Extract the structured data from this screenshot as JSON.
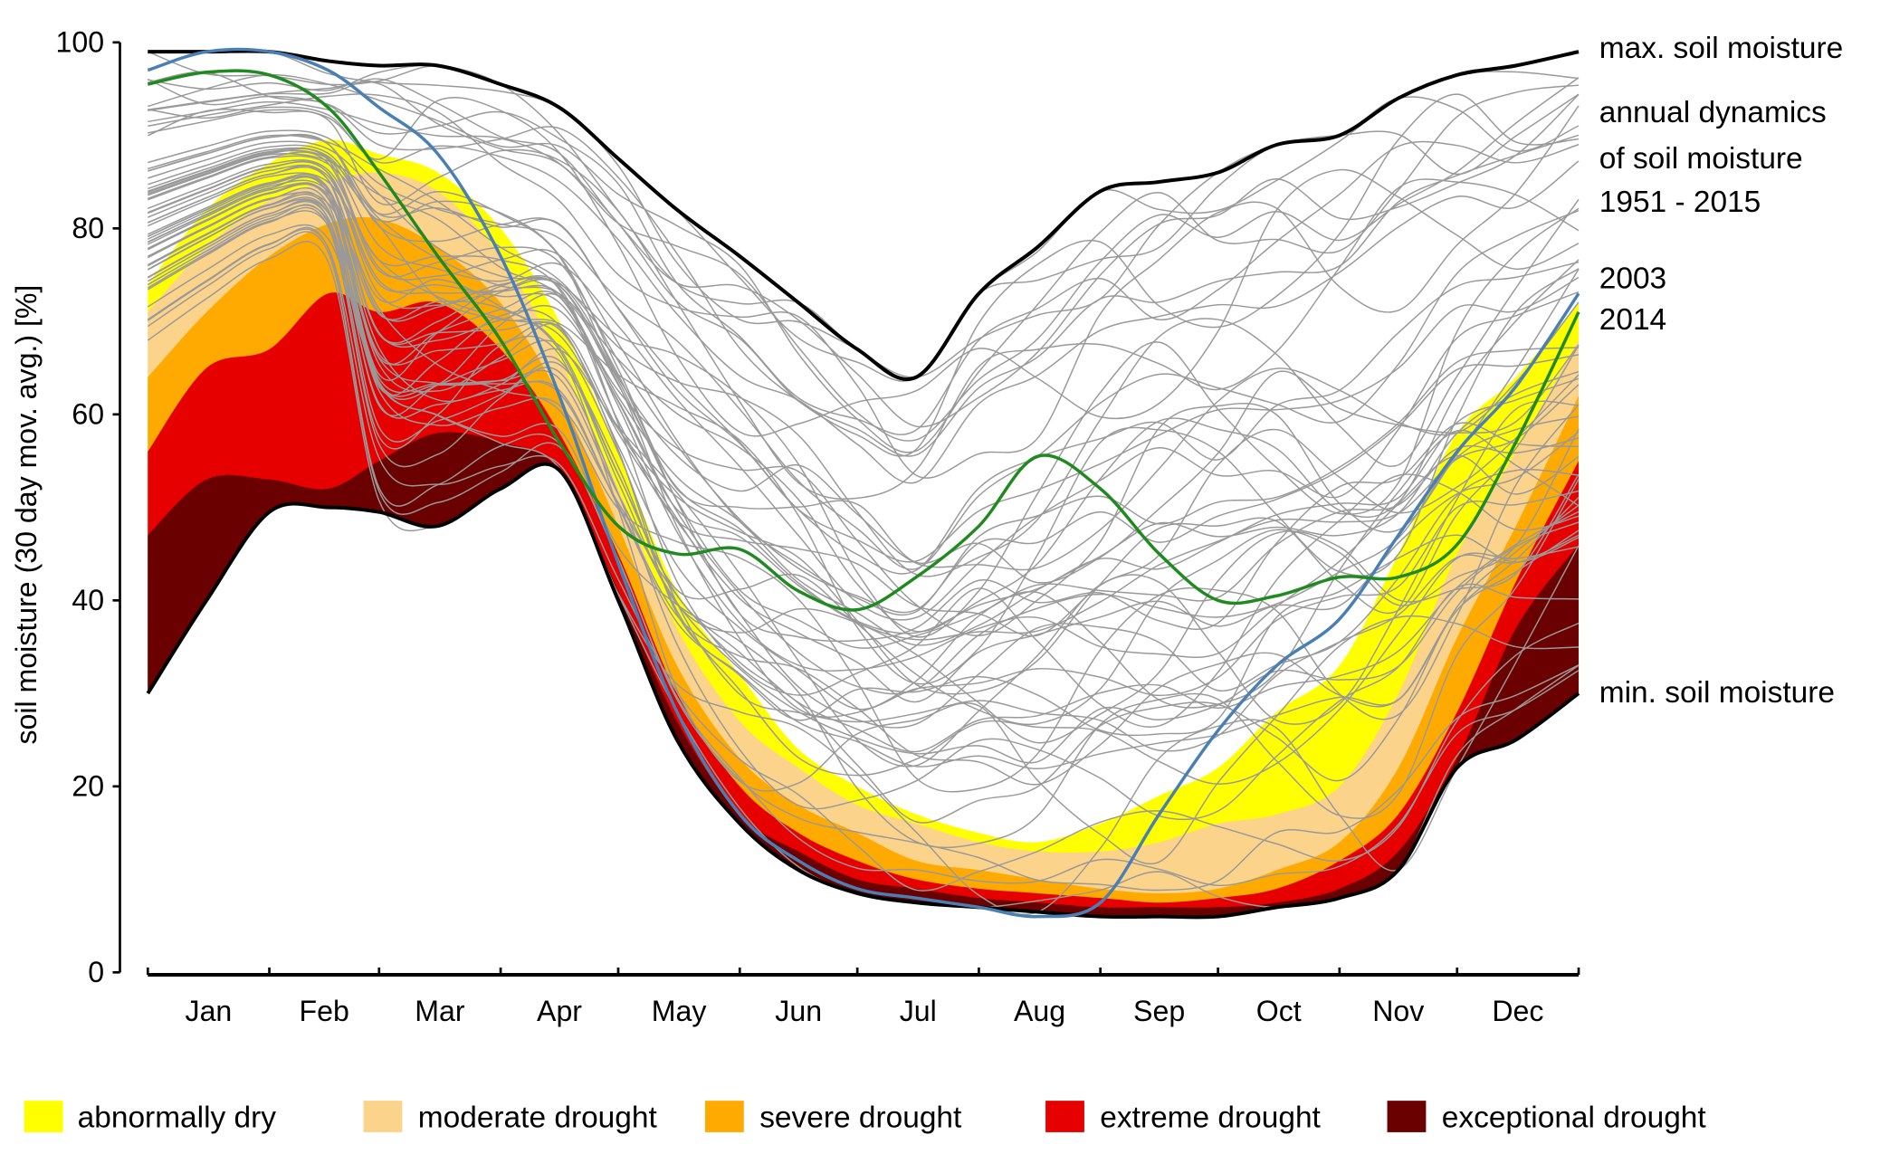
{
  "chart_data": {
    "type": "area",
    "title": "",
    "xlabel": "",
    "ylabel": "soil moisture (30 day mov. avg.) [%]",
    "ylim": [
      0,
      100
    ],
    "yticks": [
      0,
      20,
      40,
      60,
      80,
      100
    ],
    "xlim_day_of_year": [
      0,
      365
    ],
    "month_labels": [
      "Jan",
      "Feb",
      "Mar",
      "Apr",
      "May",
      "Jun",
      "Jul",
      "Aug",
      "Sep",
      "Oct",
      "Nov",
      "Dec"
    ],
    "grid": false,
    "legend_placement": "bottom",
    "x_day_of_year": [
      0,
      15,
      31,
      46,
      59,
      74,
      90,
      105,
      120,
      135,
      151,
      166,
      181,
      196,
      212,
      227,
      243,
      258,
      273,
      288,
      304,
      319,
      334,
      349,
      365
    ],
    "bands": [
      {
        "name": "exceptional drought",
        "color": "#6b0000",
        "top": [
          47,
          53,
          53,
          52,
          55,
          58,
          57,
          54,
          41,
          27,
          17,
          13,
          10,
          9,
          8,
          7.5,
          7,
          7,
          7,
          7.5,
          9,
          13,
          23,
          37,
          46
        ]
      },
      {
        "name": "extreme drought",
        "color": "#e60000",
        "top": [
          56,
          65,
          67,
          73,
          71,
          72,
          67,
          58,
          45,
          30,
          20,
          15,
          12,
          10,
          9,
          8.5,
          8,
          7.5,
          8,
          9,
          12,
          17,
          28,
          42,
          55
        ]
      },
      {
        "name": "severe drought",
        "color": "#ffaa00",
        "top": [
          64,
          71,
          77,
          80.5,
          81,
          78,
          72,
          62,
          48,
          33,
          23,
          18,
          15,
          12,
          11,
          10,
          9,
          8.5,
          9,
          11,
          14,
          22,
          36,
          48,
          62
        ]
      },
      {
        "name": "moderate drought",
        "color": "#fcd38a",
        "top": [
          71,
          78,
          83,
          85,
          86,
          84,
          77,
          66,
          52,
          37,
          27,
          22,
          18,
          16,
          14,
          13,
          13,
          14,
          16,
          17,
          20,
          30,
          45,
          56,
          68
        ]
      },
      {
        "name": "abnormally dry",
        "color": "#ffff00",
        "top": [
          74,
          82,
          87,
          89.5,
          88,
          86,
          80,
          70,
          56,
          41,
          32,
          24,
          20,
          17,
          15,
          14,
          16,
          19,
          22,
          28,
          33,
          45,
          58,
          64,
          72
        ]
      }
    ],
    "series": [
      {
        "name": "max. soil moisture",
        "color": "#000000",
        "values": [
          99,
          99,
          99,
          98,
          97.5,
          97.5,
          95.5,
          93,
          87.5,
          82,
          77,
          72,
          67,
          64,
          73,
          78,
          84,
          85,
          86,
          89,
          90,
          94,
          96.5,
          97.5,
          99
        ]
      },
      {
        "name": "min. soil moisture",
        "color": "#000000",
        "values": [
          30,
          40,
          49.5,
          50,
          49.5,
          48,
          52,
          54,
          40,
          25,
          16,
          11,
          8.5,
          7.5,
          7,
          6.5,
          6,
          6,
          6,
          7,
          8,
          11,
          22,
          25,
          30
        ]
      },
      {
        "name": "2003",
        "color": "#4a7fb5",
        "values": [
          97,
          99,
          99,
          97,
          93,
          88,
          77,
          62,
          44,
          28,
          17,
          12,
          9,
          8,
          7,
          6,
          7.5,
          17,
          26,
          33,
          38,
          47,
          56,
          63,
          73
        ]
      },
      {
        "name": "2014",
        "color": "#1f8a1f",
        "values": [
          95.5,
          96.8,
          96.5,
          93,
          86,
          77,
          68,
          57,
          48,
          45,
          45.5,
          41,
          39,
          42.5,
          48,
          55.5,
          52,
          45,
          40,
          40.5,
          42.5,
          42.5,
          46,
          57,
          71
        ]
      }
    ],
    "annotations": [
      "max. soil moisture",
      "annual dynamics",
      "of soil moisture",
      "1951 - 2015",
      "2003",
      "2014",
      "min. soil moisture"
    ],
    "legend": [
      "abnormally dry",
      "moderate drought",
      "severe drought",
      "extreme drought",
      "exceptional drought"
    ]
  }
}
